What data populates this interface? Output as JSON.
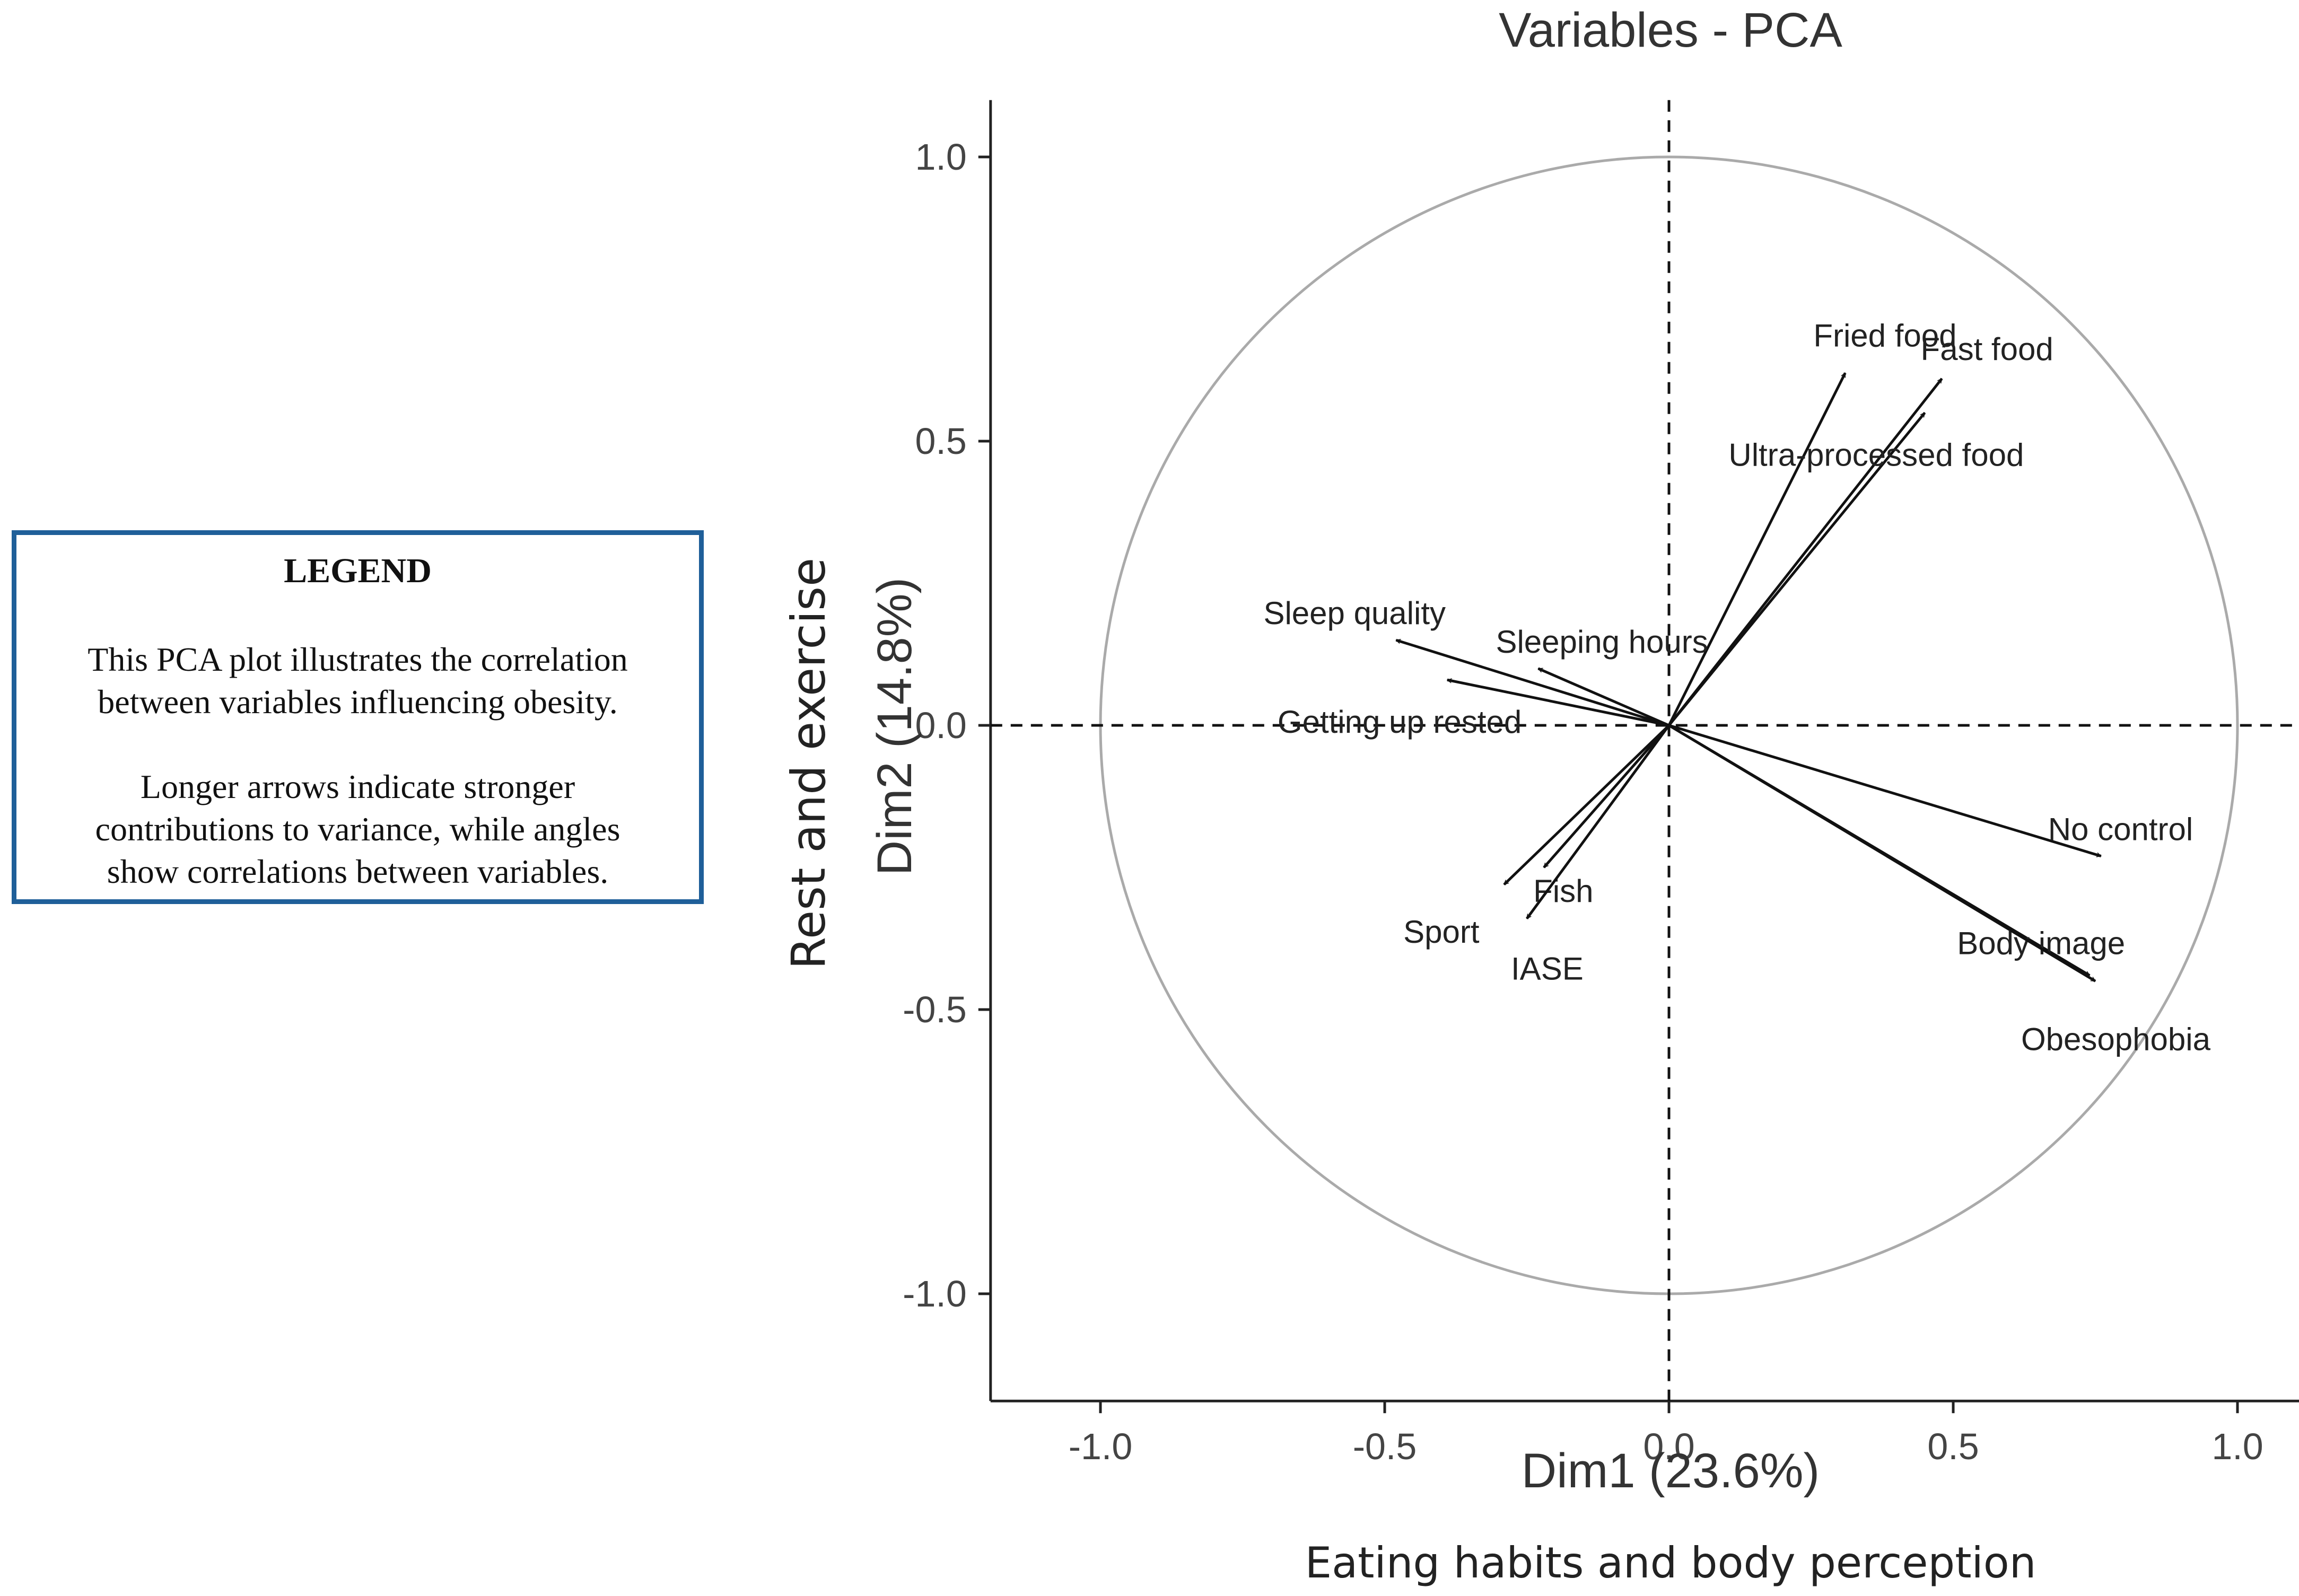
{
  "legend": {
    "title": "LEGEND",
    "lines": [
      "This PCA plot illustrates the correlation",
      "between variables influencing obesity.",
      "Longer arrows indicate stronger",
      "contributions to variance, while angles",
      "show correlations between variables."
    ]
  },
  "chart_data": {
    "type": "pca-variables",
    "title": "Variables - PCA",
    "xlabel": "Dim1 (23.6%)",
    "ylabel": "Dim2 (14.8%)",
    "x_annotation": "Eating habits and body perception",
    "y_annotation": "Rest and exercise",
    "xlim": [
      -1.1,
      1.1
    ],
    "ylim": [
      -1.1,
      1.1
    ],
    "x_ticks": [
      -1.0,
      -0.5,
      0.0,
      0.5,
      1.0
    ],
    "y_ticks": [
      -1.0,
      -0.5,
      0.0,
      0.5,
      1.0
    ],
    "x_tick_labels": [
      "-1.0",
      "-0.5",
      "0.0",
      "0.5",
      "1.0"
    ],
    "y_tick_labels": [
      "-1.0",
      "-0.5",
      "0.0",
      "0.5",
      "1.0"
    ],
    "unit_circle": true,
    "colors": {
      "arrow": "#111111",
      "circle": "#aaaaaa",
      "axis": "#222222"
    },
    "variables": [
      {
        "name": "Fried food",
        "x": 0.31,
        "y": 0.62
      },
      {
        "name": "Fast food",
        "x": 0.48,
        "y": 0.61
      },
      {
        "name": "Ultra-processed food",
        "x": 0.45,
        "y": 0.55
      },
      {
        "name": "Sleep quality",
        "x": -0.48,
        "y": 0.15
      },
      {
        "name": "Sleeping hours",
        "x": -0.23,
        "y": 0.1
      },
      {
        "name": "Getting up rested",
        "x": -0.39,
        "y": 0.08
      },
      {
        "name": "Fish",
        "x": -0.22,
        "y": -0.25
      },
      {
        "name": "Sport",
        "x": -0.29,
        "y": -0.28
      },
      {
        "name": "IASE",
        "x": -0.25,
        "y": -0.34
      },
      {
        "name": "No control",
        "x": 0.76,
        "y": -0.23
      },
      {
        "name": "Body image",
        "x": 0.74,
        "y": -0.44
      },
      {
        "name": "Obesophobia",
        "x": 0.75,
        "y": -0.45
      }
    ]
  }
}
